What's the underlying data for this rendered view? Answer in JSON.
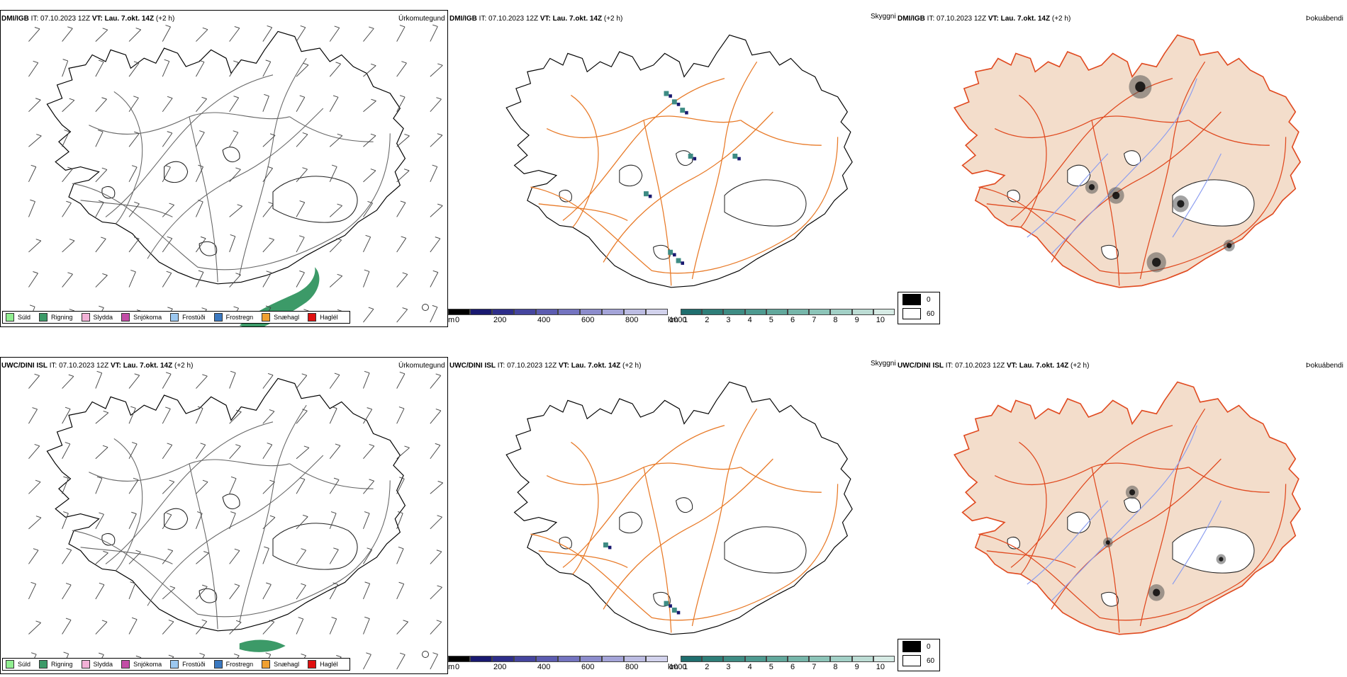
{
  "rows": [
    {
      "model": "DMI/IGB",
      "it_label": "IT:",
      "it_value": "07.10.2023 12Z",
      "vt_label": "VT:",
      "vt_value": "Lau. 7.okt. 14Z",
      "offset": "(+2 h)"
    },
    {
      "model": "UWC/DINI ISL",
      "it_label": "IT:",
      "it_value": "07.10.2023 12Z",
      "vt_label": "VT:",
      "vt_value": "Lau. 7.okt. 14Z",
      "offset": "(+2 h)"
    }
  ],
  "panels": {
    "precip_title": "Úrkomutegund",
    "visibility_title": "Skyggni",
    "fog_title": "Þokuábendi"
  },
  "precip_legend": [
    {
      "label": "Súld",
      "color": "#90ee90"
    },
    {
      "label": "Rigning",
      "color": "#3c9a68"
    },
    {
      "label": "Slydda",
      "color": "#f2b0d6"
    },
    {
      "label": "Snjókoma",
      "color": "#c24ca6"
    },
    {
      "label": "Frostúði",
      "color": "#9cc8f0"
    },
    {
      "label": "Frostregn",
      "color": "#3a78c0"
    },
    {
      "label": "Snæhagl",
      "color": "#f0a030"
    },
    {
      "label": "Haglél",
      "color": "#e01010"
    }
  ],
  "scale": {
    "height_unit": "m",
    "height_ticks": [
      "0",
      "200",
      "400",
      "600",
      "800",
      "1000"
    ],
    "height_colors": [
      "#000000",
      "#191970",
      "#2e2e8a",
      "#45459e",
      "#5c5cb0",
      "#7474c0",
      "#8c8ccc",
      "#a4a4d8",
      "#bcbce2",
      "#d2d2ec"
    ],
    "vis_unit": "km",
    "vis_ticks": [
      "1",
      "2",
      "3",
      "4",
      "5",
      "6",
      "7",
      "8",
      "9",
      "10"
    ],
    "vis_colors": [
      "#1f6e6e",
      "#2e7e78",
      "#3e8c84",
      "#4e9a90",
      "#62a89c",
      "#76b6aa",
      "#8cc4b8",
      "#a2d0c6",
      "#bcdcd4",
      "#d6eae4"
    ]
  },
  "fog_legend": [
    {
      "label": "0",
      "color": "#000000"
    },
    {
      "label": "60",
      "color": "#ffffff"
    }
  ],
  "colors": {
    "road": "#e87a28",
    "road_red": "#e04a20",
    "river": "#8a9cf0",
    "land_fog": "#f3ddcb",
    "rain": "#3c9a68",
    "coast": "#000000"
  }
}
